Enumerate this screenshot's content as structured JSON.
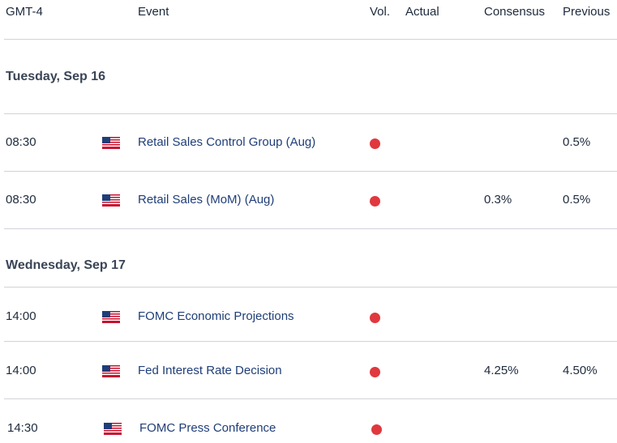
{
  "header": {
    "timezone": "GMT-4",
    "event": "Event",
    "vol": "Vol.",
    "actual": "Actual",
    "consensus": "Consensus",
    "previous": "Previous"
  },
  "days": [
    {
      "label": "Tuesday, Sep 16"
    },
    {
      "label": "Wednesday, Sep 17"
    }
  ],
  "rows": [
    {
      "time": "08:30",
      "country_flag": "us-flag-icon",
      "event": "Retail Sales Control Group (Aug)",
      "volatility": "high",
      "actual": "",
      "consensus": "",
      "previous": "0.5%"
    },
    {
      "time": "08:30",
      "country_flag": "us-flag-icon",
      "event": "Retail Sales (MoM) (Aug)",
      "volatility": "high",
      "actual": "",
      "consensus": "0.3%",
      "previous": "0.5%"
    },
    {
      "time": "14:00",
      "country_flag": "us-flag-icon",
      "event": "FOMC Economic Projections",
      "volatility": "high",
      "actual": "",
      "consensus": "",
      "previous": ""
    },
    {
      "time": "14:00",
      "country_flag": "us-flag-icon",
      "event": "Fed Interest Rate Decision",
      "volatility": "high",
      "actual": "",
      "consensus": "4.25%",
      "previous": "4.50%"
    },
    {
      "time": "14:30",
      "country_flag": "us-flag-icon",
      "event": "FOMC Press Conference",
      "volatility": "high",
      "actual": "",
      "consensus": "",
      "previous": ""
    }
  ],
  "colors": {
    "event_text": "#1f3e78",
    "volatility_high": "#e0383e",
    "divider": "#cfd3d9"
  }
}
